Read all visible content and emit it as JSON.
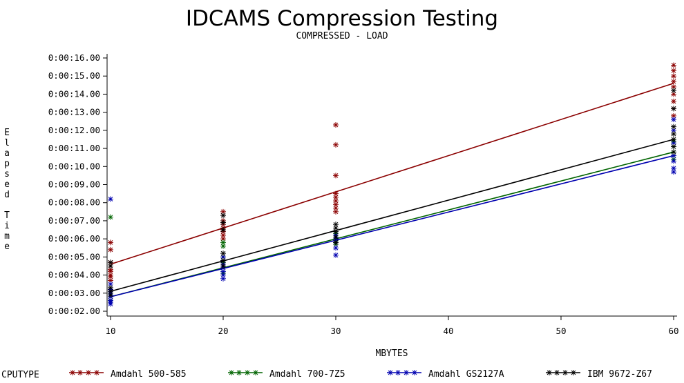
{
  "chart_data": {
    "type": "scatter",
    "title": "IDCAMS Compression Testing",
    "subtitle": "COMPRESSED - LOAD",
    "xlabel": "MBYTES",
    "ylabel": "Elapsed Time",
    "xlim": [
      10,
      60
    ],
    "ylim": [
      2,
      16
    ],
    "x_ticks": [
      "10",
      "20",
      "30",
      "40",
      "50",
      "60"
    ],
    "y_ticks": [
      "0:00:02.00",
      "0:00:03.00",
      "0:00:04.00",
      "0:00:05.00",
      "0:00:06.00",
      "0:00:07.00",
      "0:00:08.00",
      "0:00:09.00",
      "0:00:10.00",
      "0:00:11.00",
      "0:00:12.00",
      "0:00:13.00",
      "0:00:14.00",
      "0:00:15.00",
      "0:00:16.00"
    ],
    "legend_title": "CPUTYPE",
    "legend_position": "bottom",
    "series": [
      {
        "name": "Amdahl 500-585",
        "color": "#8b0000",
        "fit": [
          [
            10,
            4.6
          ],
          [
            60,
            14.6
          ]
        ],
        "points": [
          [
            10,
            3.7
          ],
          [
            10,
            3.9
          ],
          [
            10,
            4.0
          ],
          [
            10,
            4.2
          ],
          [
            10,
            4.3
          ],
          [
            10,
            4.5
          ],
          [
            10,
            4.7
          ],
          [
            10,
            5.4
          ],
          [
            10,
            5.8
          ],
          [
            20,
            6.0
          ],
          [
            20,
            6.2
          ],
          [
            20,
            6.4
          ],
          [
            20,
            6.6
          ],
          [
            20,
            6.8
          ],
          [
            20,
            7.0
          ],
          [
            20,
            7.3
          ],
          [
            20,
            7.5
          ],
          [
            30,
            7.5
          ],
          [
            30,
            7.7
          ],
          [
            30,
            7.9
          ],
          [
            30,
            8.1
          ],
          [
            30,
            8.3
          ],
          [
            30,
            8.5
          ],
          [
            30,
            9.5
          ],
          [
            30,
            11.2
          ],
          [
            30,
            12.3
          ],
          [
            60,
            12.8
          ],
          [
            60,
            13.2
          ],
          [
            60,
            13.6
          ],
          [
            60,
            14.0
          ],
          [
            60,
            14.4
          ],
          [
            60,
            14.7
          ],
          [
            60,
            15.0
          ],
          [
            60,
            15.3
          ],
          [
            60,
            15.6
          ]
        ]
      },
      {
        "name": "Amdahl 700-7Z5",
        "color": "#006400",
        "fit": [
          [
            10,
            2.8
          ],
          [
            60,
            10.8
          ]
        ],
        "points": [
          [
            10,
            2.6
          ],
          [
            10,
            2.8
          ],
          [
            10,
            3.0
          ],
          [
            10,
            7.2
          ],
          [
            20,
            4.1
          ],
          [
            20,
            4.4
          ],
          [
            20,
            4.7
          ],
          [
            20,
            5.0
          ],
          [
            20,
            5.6
          ],
          [
            20,
            5.8
          ],
          [
            30,
            5.7
          ],
          [
            30,
            5.9
          ],
          [
            30,
            6.1
          ],
          [
            30,
            6.3
          ],
          [
            60,
            10.4
          ],
          [
            60,
            10.6
          ],
          [
            60,
            10.8
          ],
          [
            60,
            11.1
          ],
          [
            60,
            11.4
          ]
        ]
      },
      {
        "name": "Amdahl GS2127A",
        "color": "#0000b0",
        "fit": [
          [
            10,
            2.8
          ],
          [
            60,
            10.6
          ]
        ],
        "points": [
          [
            10,
            2.4
          ],
          [
            10,
            2.5
          ],
          [
            10,
            2.6
          ],
          [
            10,
            2.8
          ],
          [
            10,
            3.0
          ],
          [
            10,
            3.2
          ],
          [
            10,
            3.5
          ],
          [
            10,
            8.2
          ],
          [
            20,
            3.8
          ],
          [
            20,
            4.0
          ],
          [
            20,
            4.2
          ],
          [
            20,
            4.4
          ],
          [
            20,
            4.6
          ],
          [
            20,
            4.8
          ],
          [
            20,
            5.0
          ],
          [
            30,
            5.1
          ],
          [
            30,
            5.5
          ],
          [
            30,
            5.8
          ],
          [
            30,
            6.0
          ],
          [
            30,
            6.2
          ],
          [
            60,
            9.7
          ],
          [
            60,
            9.9
          ],
          [
            60,
            10.3
          ],
          [
            60,
            10.6
          ],
          [
            60,
            11.3
          ],
          [
            60,
            12.0
          ],
          [
            60,
            12.6
          ]
        ]
      },
      {
        "name": "IBM 9672-Z67",
        "color": "#000000",
        "fit": [
          [
            10,
            3.1
          ],
          [
            60,
            11.5
          ]
        ],
        "points": [
          [
            10,
            2.9
          ],
          [
            10,
            3.1
          ],
          [
            10,
            3.3
          ],
          [
            10,
            4.5
          ],
          [
            10,
            4.7
          ],
          [
            20,
            4.5
          ],
          [
            20,
            4.8
          ],
          [
            20,
            5.2
          ],
          [
            20,
            6.5
          ],
          [
            20,
            6.9
          ],
          [
            20,
            7.3
          ],
          [
            30,
            5.8
          ],
          [
            30,
            6.1
          ],
          [
            30,
            6.4
          ],
          [
            30,
            6.6
          ],
          [
            30,
            6.8
          ],
          [
            60,
            10.8
          ],
          [
            60,
            11.1
          ],
          [
            60,
            11.5
          ],
          [
            60,
            11.8
          ],
          [
            60,
            12.2
          ],
          [
            60,
            13.2
          ],
          [
            60,
            14.2
          ]
        ]
      }
    ]
  }
}
